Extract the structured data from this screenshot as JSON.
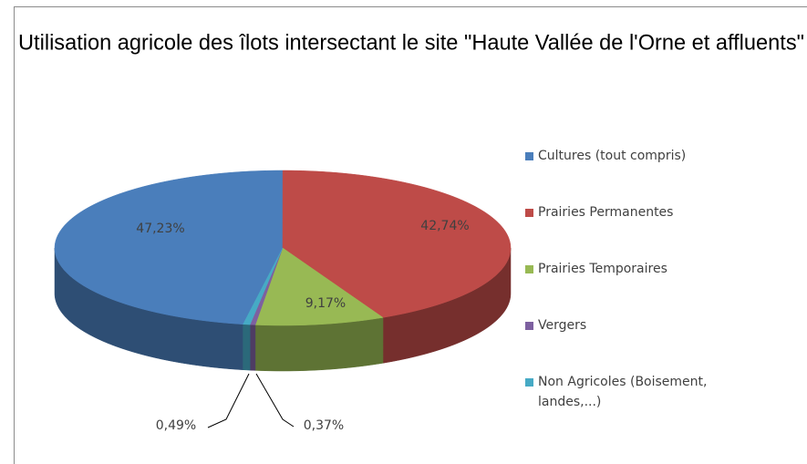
{
  "chart_data": {
    "type": "pie3d",
    "title": "Utilisation agricole des îlots intersectant le site \"Haute Vallée de l'Orne et affluents\"",
    "categories": [
      "Cultures (tout compris)",
      "Prairies Permanentes",
      "Prairies Temporaires",
      "Vergers",
      "Non Agricoles (Boisement, landes,...)"
    ],
    "values": [
      47.23,
      42.74,
      9.17,
      0.37,
      0.49
    ],
    "value_labels": [
      "47,23%",
      "42,74%",
      "9,17%",
      "0,37%",
      "0,49%"
    ],
    "colors": [
      "#4a7ebb",
      "#be4b48",
      "#98b954",
      "#7d60a0",
      "#46aac5"
    ],
    "legend": "right"
  }
}
